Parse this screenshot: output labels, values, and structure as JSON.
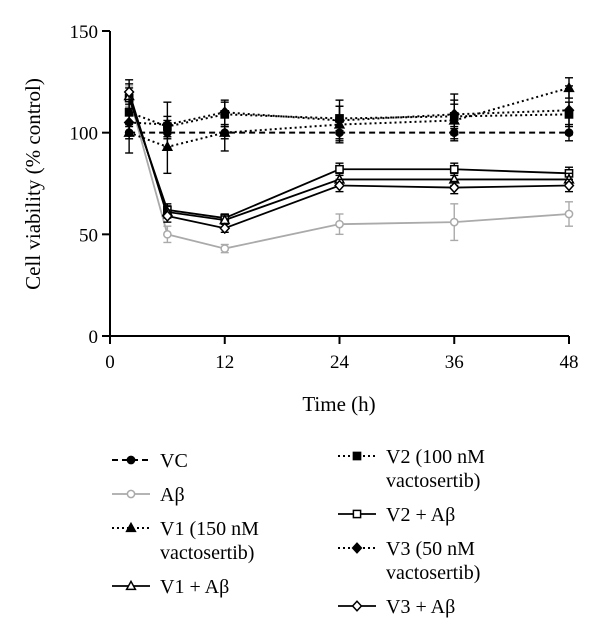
{
  "chart_data": {
    "type": "line",
    "xlabel": "Time (h)",
    "ylabel": "Cell viability (% control)",
    "xlim": [
      0,
      48
    ],
    "ylim": [
      0,
      150
    ],
    "xticks": [
      "0",
      "12",
      "24",
      "36",
      "48"
    ],
    "yticks": [
      "0",
      "50",
      "100",
      "150"
    ],
    "grid": false,
    "legend_position": "bottom",
    "series": [
      {
        "name": "VC",
        "key": "vc",
        "marker": "circle-filled",
        "line": "dashed",
        "color": "#000000",
        "x": [
          2,
          6,
          12,
          24,
          36,
          48
        ],
        "y": [
          100,
          100,
          100,
          100,
          100,
          100
        ],
        "err": [
          3,
          3,
          3,
          3,
          3,
          4
        ]
      },
      {
        "name": "V2 (100 nM vactosertib)",
        "key": "v2",
        "marker": "square-filled",
        "line": "dotted",
        "color": "#000000",
        "x": [
          2,
          6,
          12,
          24,
          36,
          48
        ],
        "y": [
          110,
          103,
          109,
          107,
          108,
          109
        ],
        "err": [
          6,
          5,
          6,
          6,
          6,
          6
        ]
      },
      {
        "name": "Aβ",
        "key": "ab",
        "marker": "circle-open",
        "line": "solid",
        "color": "#aaaaaa",
        "x": [
          2,
          6,
          12,
          24,
          36,
          48
        ],
        "y": [
          118,
          50,
          43,
          55,
          56,
          60
        ],
        "err": [
          5,
          4,
          2,
          5,
          9,
          6
        ]
      },
      {
        "name": "V2 + Aβ",
        "key": "v2ab",
        "marker": "square-open",
        "line": "solid",
        "color": "#000000",
        "x": [
          2,
          6,
          12,
          24,
          36,
          48
        ],
        "y": [
          117,
          62,
          58,
          82,
          82,
          80
        ],
        "err": [
          5,
          3,
          2,
          3,
          3,
          3
        ]
      },
      {
        "name": "V1 (150 nM vactosertib)",
        "key": "v1",
        "marker": "triangle-filled",
        "line": "dotted",
        "color": "#000000",
        "x": [
          2,
          6,
          12,
          24,
          36,
          48
        ],
        "y": [
          100,
          93,
          100,
          104,
          106,
          122
        ],
        "err": [
          10,
          13,
          9,
          9,
          10,
          5
        ]
      },
      {
        "name": "V3 (50 nM vactosertib)",
        "key": "v3",
        "marker": "diamond-filled",
        "line": "dotted",
        "color": "#000000",
        "x": [
          2,
          6,
          12,
          24,
          36,
          48
        ],
        "y": [
          105,
          104,
          110,
          106,
          109,
          111
        ],
        "err": [
          5,
          11,
          6,
          10,
          10,
          12
        ]
      },
      {
        "name": "V1 + Aβ",
        "key": "v1ab",
        "marker": "triangle-open",
        "line": "solid",
        "color": "#000000",
        "x": [
          2,
          6,
          12,
          24,
          36,
          48
        ],
        "y": [
          118,
          61,
          57,
          77,
          77,
          77
        ],
        "err": [
          6,
          3,
          2,
          3,
          3,
          3
        ]
      },
      {
        "name": "V3 + Aβ",
        "key": "v3ab",
        "marker": "diamond-open",
        "line": "solid",
        "color": "#000000",
        "x": [
          2,
          6,
          12,
          24,
          36,
          48
        ],
        "y": [
          120,
          59,
          53,
          74,
          73,
          74
        ],
        "err": [
          6,
          3,
          2,
          3,
          3,
          3
        ]
      }
    ],
    "legend": [
      {
        "key": "vc",
        "lines": [
          "VC"
        ]
      },
      {
        "key": "ab",
        "lines": [
          "Aβ"
        ]
      },
      {
        "key": "v1",
        "lines": [
          "V1 (150 nM",
          "vactosertib)"
        ]
      },
      {
        "key": "v1ab",
        "lines": [
          "V1 + Aβ"
        ]
      },
      {
        "key": "v2",
        "lines": [
          "V2 (100 nM",
          "vactosertib)"
        ]
      },
      {
        "key": "v2ab",
        "lines": [
          "V2 + Aβ"
        ]
      },
      {
        "key": "v3",
        "lines": [
          "V3 (50 nM",
          "vactosertib)"
        ]
      },
      {
        "key": "v3ab",
        "lines": [
          "V3 + Aβ"
        ]
      }
    ]
  }
}
